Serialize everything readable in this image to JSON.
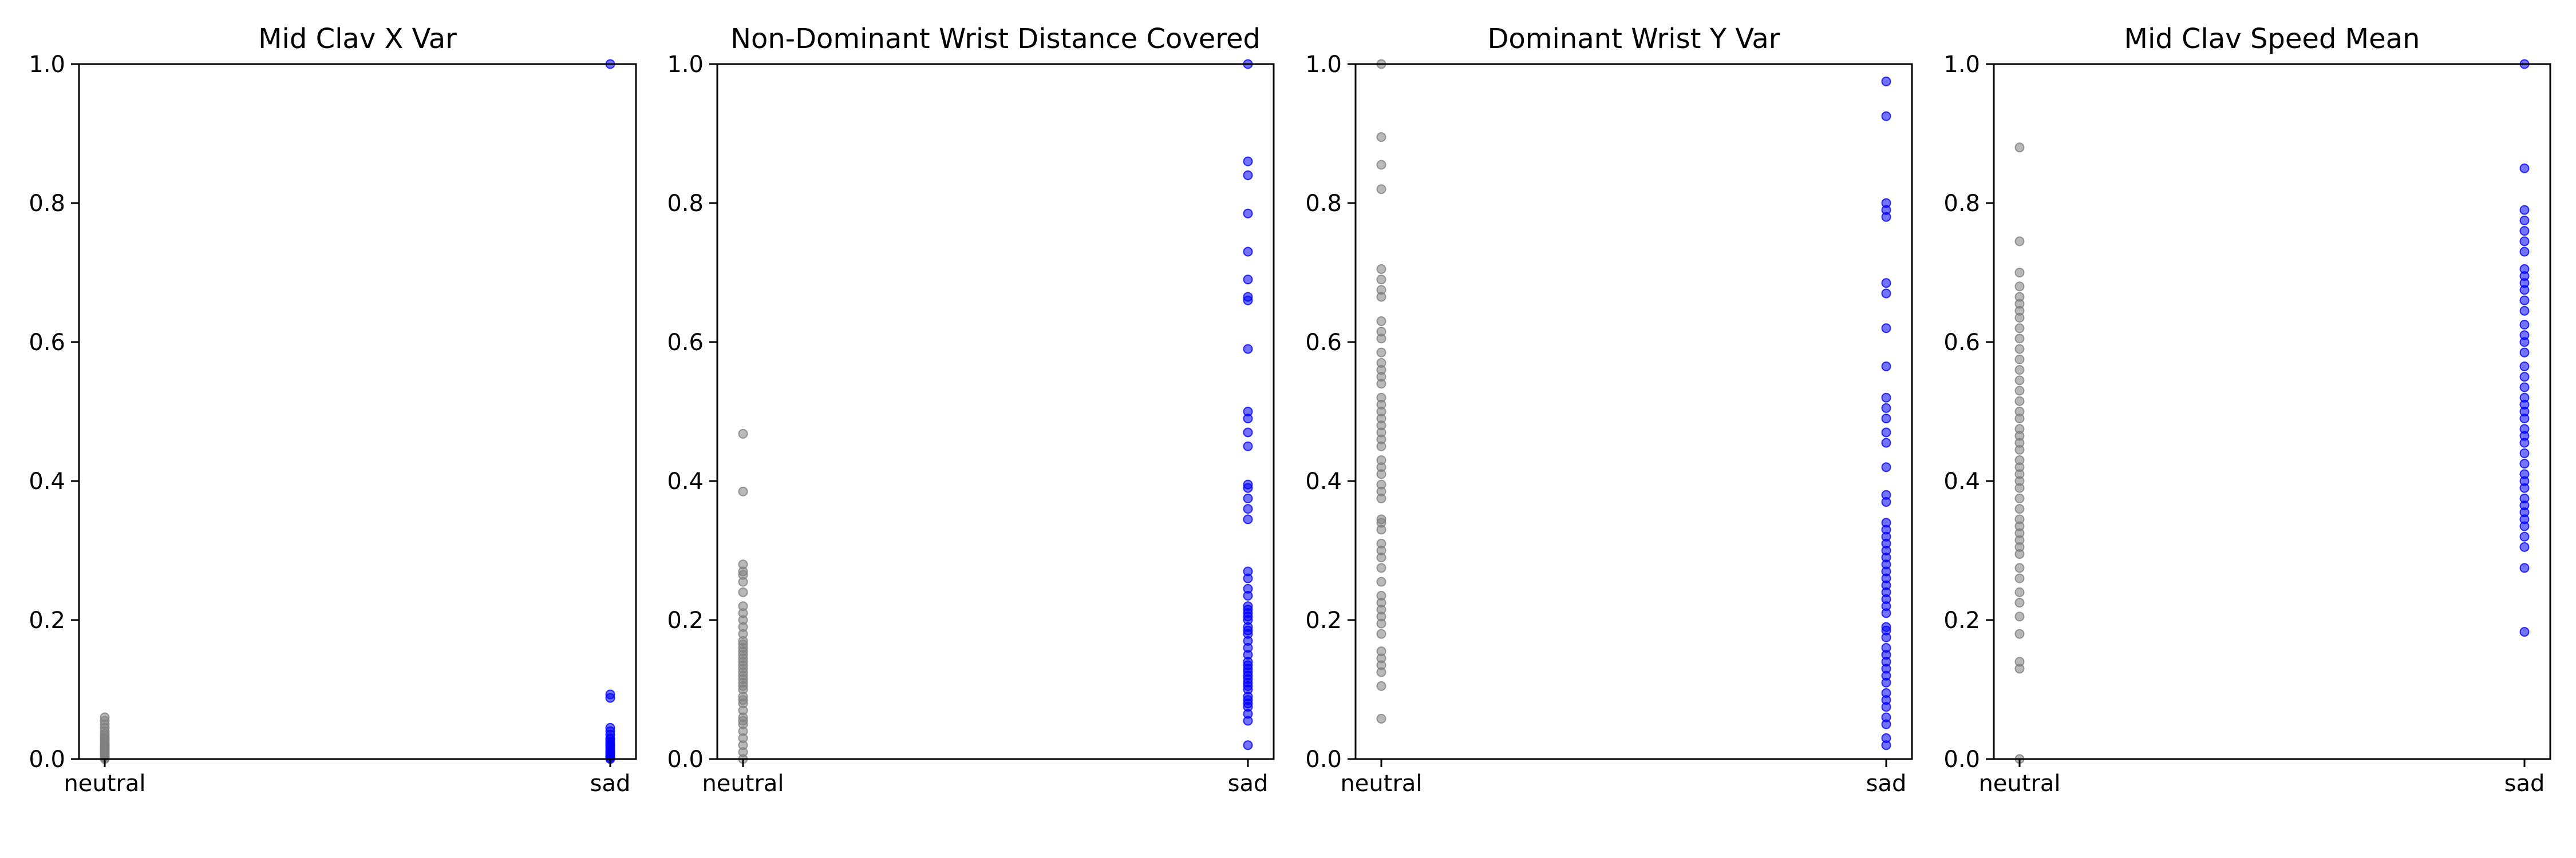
{
  "colors": {
    "neutral": "#808080",
    "sad": "#0000ff"
  },
  "chart_data": [
    {
      "type": "scatter",
      "title": "Mid Clav X Var",
      "xlabel": "",
      "ylabel": "",
      "categories": [
        "neutral",
        "sad"
      ],
      "ylim": [
        0,
        1
      ],
      "yticks": [
        "0.0",
        "0.2",
        "0.4",
        "0.6",
        "0.8",
        "1.0"
      ],
      "grid": false,
      "series": [
        {
          "category": "neutral",
          "color": "#808080",
          "values": [
            0.0,
            0.002,
            0.004,
            0.006,
            0.008,
            0.01,
            0.012,
            0.014,
            0.016,
            0.018,
            0.02,
            0.022,
            0.025,
            0.028,
            0.03,
            0.033,
            0.036,
            0.04,
            0.045,
            0.05,
            0.055,
            0.06
          ]
        },
        {
          "category": "sad",
          "color": "#0000ff",
          "values": [
            0.0,
            0.002,
            0.004,
            0.006,
            0.008,
            0.01,
            0.012,
            0.015,
            0.018,
            0.02,
            0.022,
            0.025,
            0.028,
            0.03,
            0.035,
            0.04,
            0.045,
            0.088,
            0.093,
            1.0
          ]
        }
      ]
    },
    {
      "type": "scatter",
      "title": "Non-Dominant Wrist Distance Covered",
      "xlabel": "",
      "ylabel": "",
      "categories": [
        "neutral",
        "sad"
      ],
      "ylim": [
        0,
        1
      ],
      "yticks": [
        "0.0",
        "0.2",
        "0.4",
        "0.6",
        "0.8",
        "1.0"
      ],
      "grid": false,
      "series": [
        {
          "category": "neutral",
          "color": "#808080",
          "values": [
            0.0,
            0.01,
            0.02,
            0.03,
            0.04,
            0.05,
            0.055,
            0.06,
            0.07,
            0.08,
            0.085,
            0.09,
            0.1,
            0.105,
            0.11,
            0.115,
            0.12,
            0.125,
            0.13,
            0.135,
            0.14,
            0.145,
            0.15,
            0.155,
            0.16,
            0.165,
            0.17,
            0.18,
            0.19,
            0.2,
            0.21,
            0.22,
            0.24,
            0.255,
            0.265,
            0.27,
            0.28,
            0.385,
            0.468
          ]
        },
        {
          "category": "sad",
          "color": "#0000ff",
          "values": [
            0.02,
            0.055,
            0.065,
            0.075,
            0.08,
            0.085,
            0.09,
            0.1,
            0.105,
            0.11,
            0.115,
            0.12,
            0.125,
            0.13,
            0.135,
            0.14,
            0.15,
            0.16,
            0.17,
            0.18,
            0.185,
            0.19,
            0.2,
            0.205,
            0.21,
            0.215,
            0.22,
            0.235,
            0.245,
            0.26,
            0.27,
            0.345,
            0.36,
            0.375,
            0.39,
            0.395,
            0.45,
            0.47,
            0.49,
            0.5,
            0.59,
            0.66,
            0.665,
            0.69,
            0.73,
            0.785,
            0.84,
            0.86,
            1.0
          ]
        }
      ]
    },
    {
      "type": "scatter",
      "title": "Dominant Wrist Y Var",
      "xlabel": "",
      "ylabel": "",
      "categories": [
        "neutral",
        "sad"
      ],
      "ylim": [
        0,
        1
      ],
      "yticks": [
        "0.0",
        "0.2",
        "0.4",
        "0.6",
        "0.8",
        "1.0"
      ],
      "grid": false,
      "series": [
        {
          "category": "neutral",
          "color": "#808080",
          "values": [
            0.058,
            0.105,
            0.125,
            0.135,
            0.145,
            0.155,
            0.18,
            0.195,
            0.205,
            0.215,
            0.225,
            0.235,
            0.255,
            0.275,
            0.29,
            0.3,
            0.31,
            0.33,
            0.34,
            0.345,
            0.375,
            0.385,
            0.395,
            0.41,
            0.42,
            0.43,
            0.45,
            0.46,
            0.47,
            0.48,
            0.49,
            0.5,
            0.51,
            0.52,
            0.54,
            0.55,
            0.56,
            0.57,
            0.585,
            0.605,
            0.615,
            0.63,
            0.665,
            0.675,
            0.69,
            0.705,
            0.82,
            0.855,
            0.895,
            1.0
          ]
        },
        {
          "category": "sad",
          "color": "#0000ff",
          "values": [
            0.02,
            0.03,
            0.05,
            0.06,
            0.075,
            0.085,
            0.095,
            0.11,
            0.12,
            0.13,
            0.14,
            0.15,
            0.16,
            0.175,
            0.185,
            0.19,
            0.21,
            0.22,
            0.23,
            0.24,
            0.25,
            0.26,
            0.27,
            0.28,
            0.29,
            0.3,
            0.31,
            0.32,
            0.33,
            0.34,
            0.37,
            0.38,
            0.42,
            0.455,
            0.47,
            0.49,
            0.505,
            0.52,
            0.565,
            0.62,
            0.67,
            0.685,
            0.78,
            0.79,
            0.8,
            0.925,
            0.975
          ]
        }
      ]
    },
    {
      "type": "scatter",
      "title": "Mid Clav Speed Mean",
      "xlabel": "",
      "ylabel": "",
      "categories": [
        "neutral",
        "sad"
      ],
      "ylim": [
        0,
        1
      ],
      "yticks": [
        "0.0",
        "0.2",
        "0.4",
        "0.6",
        "0.8",
        "1.0"
      ],
      "grid": false,
      "series": [
        {
          "category": "neutral",
          "color": "#808080",
          "values": [
            0.0,
            0.13,
            0.14,
            0.18,
            0.205,
            0.225,
            0.24,
            0.26,
            0.275,
            0.295,
            0.305,
            0.315,
            0.325,
            0.335,
            0.345,
            0.36,
            0.375,
            0.39,
            0.4,
            0.41,
            0.42,
            0.43,
            0.445,
            0.455,
            0.465,
            0.475,
            0.49,
            0.5,
            0.515,
            0.53,
            0.545,
            0.56,
            0.575,
            0.59,
            0.605,
            0.62,
            0.635,
            0.645,
            0.655,
            0.665,
            0.68,
            0.7,
            0.745,
            0.88
          ]
        },
        {
          "category": "sad",
          "color": "#0000ff",
          "values": [
            0.183,
            0.275,
            0.305,
            0.32,
            0.335,
            0.345,
            0.355,
            0.365,
            0.375,
            0.39,
            0.4,
            0.41,
            0.425,
            0.44,
            0.455,
            0.465,
            0.475,
            0.49,
            0.5,
            0.51,
            0.52,
            0.535,
            0.55,
            0.565,
            0.585,
            0.6,
            0.61,
            0.625,
            0.645,
            0.66,
            0.675,
            0.685,
            0.695,
            0.705,
            0.73,
            0.745,
            0.76,
            0.775,
            0.79,
            0.85,
            1.0
          ]
        }
      ]
    }
  ]
}
